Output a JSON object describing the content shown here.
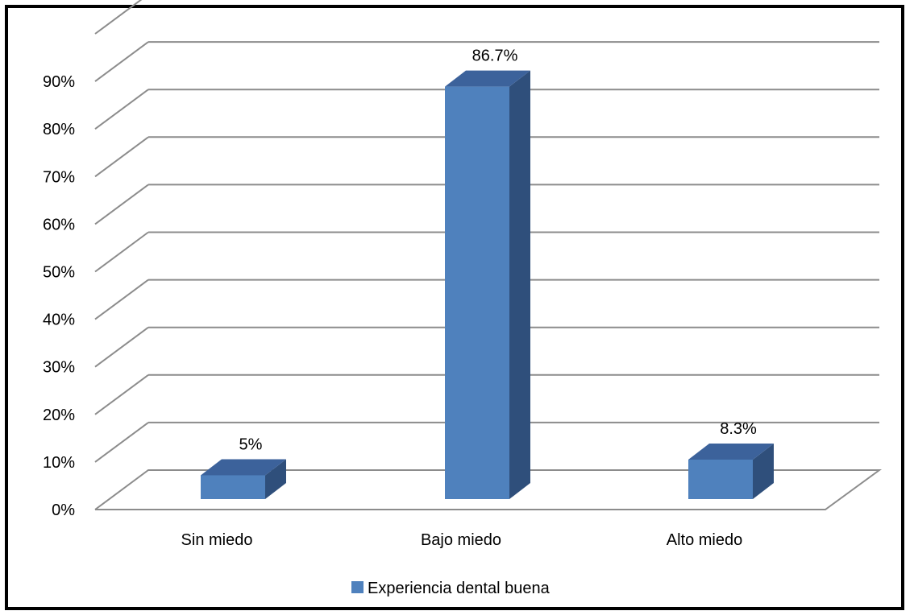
{
  "chart_data": {
    "type": "bar",
    "categories": [
      "Sin miedo",
      "Bajo miedo",
      "Alto miedo"
    ],
    "series": [
      {
        "name": "Experiencia dental buena",
        "values": [
          5,
          86.7,
          8.3
        ]
      }
    ],
    "data_labels": [
      "5%",
      "86.7%",
      "8.3%"
    ],
    "y_ticks": [
      "0%",
      "10%",
      "20%",
      "30%",
      "40%",
      "50%",
      "60%",
      "70%",
      "80%",
      "90%"
    ],
    "ylim": [
      0,
      100
    ],
    "title": "",
    "xlabel": "",
    "ylabel": "",
    "grid": true,
    "legend_position": "bottom",
    "style": "3d",
    "colors": {
      "bar_front": "#4f81bd",
      "bar_top": "#3c629b",
      "bar_side": "#2f4f7b",
      "grid": "#8c8c8c",
      "frame": "#000000"
    }
  }
}
